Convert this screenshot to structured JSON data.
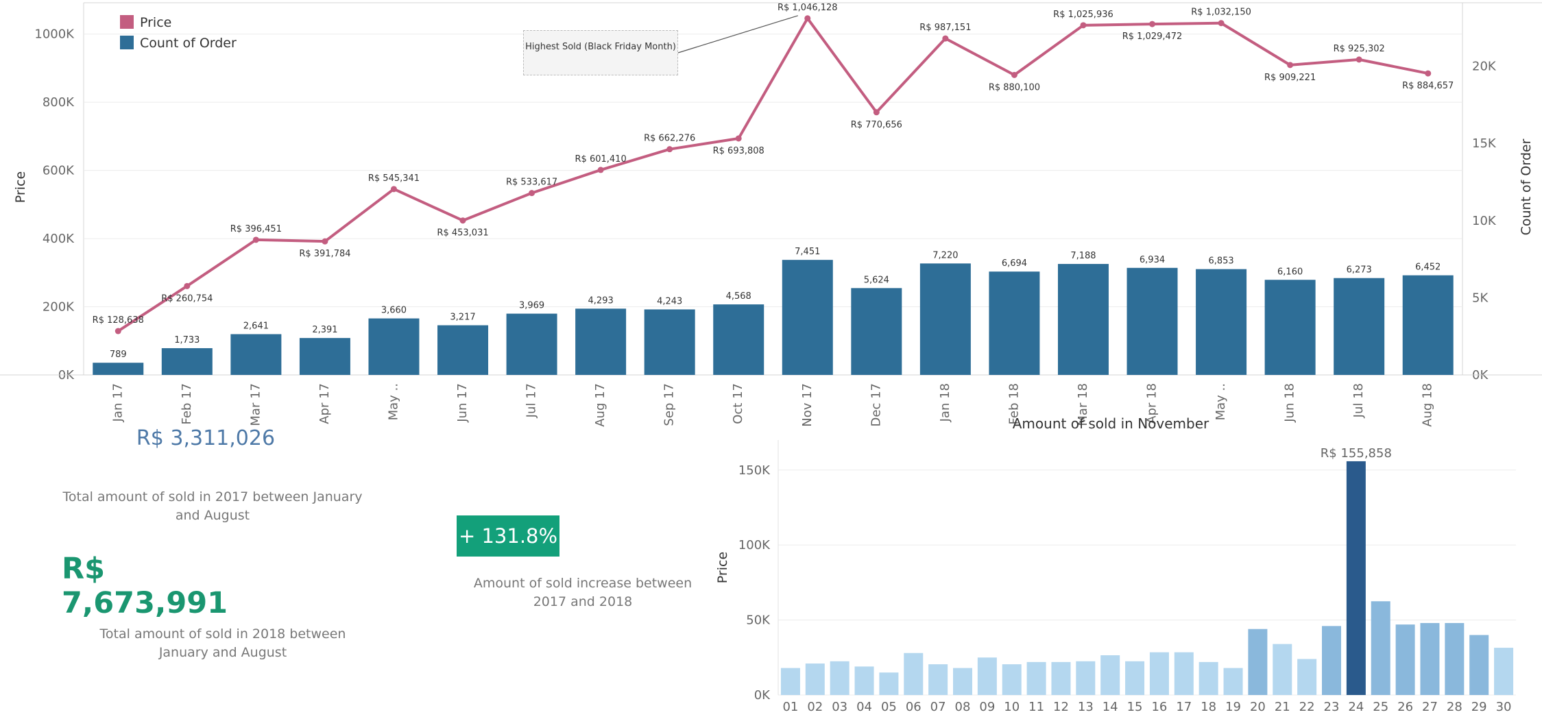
{
  "colors": {
    "price_line": "#c35d80",
    "order_bar": "#2e6e97",
    "kpi_green": "#13a07a",
    "kpi_blue": "#4e79a7",
    "nov_dark": "#2a5a8c",
    "nov_mid": "#8ab8dc",
    "nov_light": "#b4d7ef"
  },
  "chart_data": [
    {
      "type": "bar+line",
      "categories": [
        "Jan 17",
        "Feb 17",
        "Mar 17",
        "Apr 17",
        "May ..",
        "Jun 17",
        "Jul 17",
        "Aug 17",
        "Sep 17",
        "Oct 17",
        "Nov 17",
        "Dec 17",
        "Jan 18",
        "Feb 18",
        "Mar 18",
        "Apr 18",
        "May ..",
        "Jun 18",
        "Jul 18",
        "Aug 18"
      ],
      "series": [
        {
          "name": "Price",
          "type": "line",
          "axis": "left",
          "values": [
            128638,
            260754,
            396451,
            391784,
            545341,
            453031,
            533617,
            601410,
            662276,
            693808,
            1046128,
            770656,
            987151,
            880100,
            1025936,
            1029472,
            1032150,
            909221,
            925302,
            884657
          ],
          "labels": [
            "R$ 128,638",
            "R$ 260,754",
            "R$ 396,451",
            "R$ 391,784",
            "R$ 545,341",
            "R$ 453,031",
            "R$ 533,617",
            "R$ 601,410",
            "R$ 662,276",
            "R$ 693,808",
            "R$ 1,046,128",
            "R$ 770,656",
            "R$ 987,151",
            "R$ 880,100",
            "R$ 1,025,936",
            "R$ 1,029,472",
            "R$ 1,032,150",
            "R$ 909,221",
            "R$ 925,302",
            "R$ 884,657"
          ]
        },
        {
          "name": "Count of Order",
          "type": "bar",
          "axis": "right",
          "values": [
            789,
            1733,
            2641,
            2391,
            3660,
            3217,
            3969,
            4293,
            4243,
            4568,
            7451,
            5624,
            7220,
            6694,
            7188,
            6934,
            6853,
            6160,
            6273,
            6452
          ],
          "labels": [
            "789",
            "1,733",
            "2,641",
            "2,391",
            "3,660",
            "3,217",
            "3,969",
            "4,293",
            "4,243",
            "4,568",
            "7,451",
            "5,624",
            "7,220",
            "6,694",
            "7,188",
            "6,934",
            "6,853",
            "6,160",
            "6,273",
            "6,452"
          ]
        }
      ],
      "ylabel": "Price",
      "ylabel_right": "Count of Order",
      "ylim": [
        0,
        1100000
      ],
      "ylim_right": [
        0,
        24285
      ],
      "yticks": [
        "0K",
        "200K",
        "400K",
        "600K",
        "800K",
        "1000K"
      ],
      "yticks_right": [
        "0K",
        "5K",
        "10K",
        "15K",
        "20K"
      ],
      "legend": [
        "Price",
        "Count of Order"
      ],
      "legend_position": "top-left",
      "annotation": "Highest Sold (Black Friday Month)"
    },
    {
      "type": "bar",
      "title": "Amount of sold in November",
      "ylabel": "Price",
      "categories": [
        "01",
        "02",
        "03",
        "04",
        "05",
        "06",
        "07",
        "08",
        "09",
        "10",
        "11",
        "12",
        "13",
        "14",
        "15",
        "16",
        "17",
        "18",
        "19",
        "20",
        "21",
        "22",
        "23",
        "24",
        "25",
        "26",
        "27",
        "28",
        "29",
        "30"
      ],
      "values": [
        18000,
        21000,
        22500,
        19000,
        15000,
        28000,
        20500,
        18000,
        25000,
        20500,
        22000,
        22000,
        22500,
        26500,
        22500,
        28500,
        28500,
        22000,
        18000,
        44000,
        34000,
        24000,
        46000,
        155858,
        62500,
        47000,
        48000,
        48000,
        40000,
        31500
      ],
      "ylim": [
        0,
        170000
      ],
      "yticks": [
        "0K",
        "50K",
        "100K",
        "150K"
      ],
      "highlight_label": "R$ 155,858"
    }
  ],
  "kpis": {
    "total_2017_value": "R$ 3,311,026",
    "total_2017_label": "Total amount of sold in 2017 between January and August",
    "total_2018_value": "R$ 7,673,991",
    "total_2018_label": "Total amount of sold in 2018 between January and August",
    "increase_value": "+ 131.8%",
    "increase_label": "Amount of sold increase between 2017 and 2018"
  }
}
